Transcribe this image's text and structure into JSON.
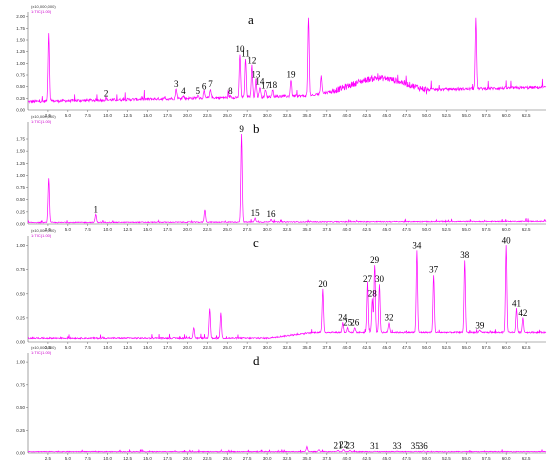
{
  "colors": {
    "trace": "#ff00ff",
    "axis": "#666666",
    "text": "#000000"
  },
  "x_ticks": [
    "2.5",
    "5.0",
    "7.5",
    "10.0",
    "12.5",
    "15.0",
    "17.5",
    "20.0",
    "22.5",
    "25.0",
    "27.5",
    "30.0",
    "32.5",
    "35.0",
    "37.5",
    "40.0",
    "42.5",
    "45.0",
    "47.5",
    "50.0",
    "52.5",
    "55.0",
    "57.5",
    "60.0",
    "62.5"
  ],
  "y_ticks": [
    "0.25",
    "0.50",
    "0.75",
    "1.00",
    "1.25",
    "1.50",
    "1.75",
    "2.00"
  ],
  "chart_data": [
    {
      "type": "line",
      "panel": "a",
      "scale_label": "(x10,000,000)",
      "trace_label": "1:TIC(1.00)",
      "xlim": [
        0,
        65
      ],
      "ylim": [
        0,
        2.1
      ],
      "grid": false,
      "peaks": [
        {
          "x": 2.6,
          "y": 1.65,
          "label": ""
        },
        {
          "x": 9.8,
          "y": 0.25,
          "label": "2"
        },
        {
          "x": 18.6,
          "y": 0.45,
          "label": "3"
        },
        {
          "x": 19.5,
          "y": 0.3,
          "label": "4"
        },
        {
          "x": 21.3,
          "y": 0.3,
          "label": "5"
        },
        {
          "x": 22.1,
          "y": 0.4,
          "label": "6"
        },
        {
          "x": 22.9,
          "y": 0.45,
          "label": "7"
        },
        {
          "x": 25.4,
          "y": 0.3,
          "label": "8"
        },
        {
          "x": 26.6,
          "y": 1.2,
          "label": "10"
        },
        {
          "x": 27.3,
          "y": 1.1,
          "label": "11"
        },
        {
          "x": 28.1,
          "y": 0.95,
          "label": "12"
        },
        {
          "x": 28.6,
          "y": 0.65,
          "label": "13"
        },
        {
          "x": 29.1,
          "y": 0.5,
          "label": "14"
        },
        {
          "x": 29.8,
          "y": 0.42,
          "label": "17"
        },
        {
          "x": 30.7,
          "y": 0.43,
          "label": "18"
        },
        {
          "x": 33.0,
          "y": 0.65,
          "label": "19"
        },
        {
          "x": 35.2,
          "y": 2.0,
          "label": ""
        },
        {
          "x": 36.8,
          "y": 0.75,
          "label": ""
        },
        {
          "x": 56.2,
          "y": 1.95,
          "label": ""
        }
      ]
    },
    {
      "type": "line",
      "panel": "b",
      "scale_label": "(x10,000,000)",
      "trace_label": "1:TIC(1.00)",
      "xlim": [
        0,
        65
      ],
      "ylim": [
        0,
        2.1
      ],
      "grid": false,
      "peaks": [
        {
          "x": 2.6,
          "y": 0.95,
          "label": ""
        },
        {
          "x": 8.5,
          "y": 0.2,
          "label": "1"
        },
        {
          "x": 22.2,
          "y": 0.3,
          "label": ""
        },
        {
          "x": 26.8,
          "y": 1.85,
          "label": "9"
        },
        {
          "x": 28.5,
          "y": 0.12,
          "label": "15"
        },
        {
          "x": 30.5,
          "y": 0.1,
          "label": "16"
        }
      ]
    },
    {
      "type": "line",
      "panel": "c",
      "scale_label": "(x10,000,000)",
      "trace_label": "1:TIC(1.00)",
      "xlim": [
        0,
        65
      ],
      "ylim": [
        0,
        1.1
      ],
      "grid": false,
      "peaks": [
        {
          "x": 20.8,
          "y": 0.15,
          "label": ""
        },
        {
          "x": 22.8,
          "y": 0.35,
          "label": ""
        },
        {
          "x": 24.2,
          "y": 0.3,
          "label": ""
        },
        {
          "x": 37.0,
          "y": 0.55,
          "label": "20"
        },
        {
          "x": 39.5,
          "y": 0.2,
          "label": "24"
        },
        {
          "x": 40.1,
          "y": 0.15,
          "label": "25"
        },
        {
          "x": 41.0,
          "y": 0.15,
          "label": "26"
        },
        {
          "x": 42.6,
          "y": 0.6,
          "label": "27"
        },
        {
          "x": 43.2,
          "y": 0.45,
          "label": "28"
        },
        {
          "x": 43.5,
          "y": 0.8,
          "label": "29"
        },
        {
          "x": 44.1,
          "y": 0.6,
          "label": "30"
        },
        {
          "x": 45.3,
          "y": 0.2,
          "label": "32"
        },
        {
          "x": 48.8,
          "y": 0.95,
          "label": "34"
        },
        {
          "x": 50.9,
          "y": 0.7,
          "label": "37"
        },
        {
          "x": 54.8,
          "y": 0.85,
          "label": "38"
        },
        {
          "x": 56.7,
          "y": 0.12,
          "label": "39"
        },
        {
          "x": 60.0,
          "y": 1.0,
          "label": "40"
        },
        {
          "x": 61.3,
          "y": 0.35,
          "label": "41"
        },
        {
          "x": 62.1,
          "y": 0.25,
          "label": "42"
        }
      ]
    },
    {
      "type": "line",
      "panel": "d",
      "scale_label": "(x10,000,000)",
      "trace_label": "1:TIC(1.00)",
      "xlim": [
        0,
        65
      ],
      "ylim": [
        0,
        1.1
      ],
      "grid": false,
      "peaks": [
        {
          "x": 35.0,
          "y": 0.07,
          "label": ""
        },
        {
          "x": 36.5,
          "y": 0.04,
          "label": ""
        },
        {
          "x": 38.9,
          "y": 0.03,
          "label": "21"
        },
        {
          "x": 39.6,
          "y": 0.04,
          "label": "22"
        },
        {
          "x": 40.4,
          "y": 0.03,
          "label": "23"
        },
        {
          "x": 43.5,
          "y": 0.02,
          "label": "31"
        },
        {
          "x": 46.3,
          "y": 0.02,
          "label": "33"
        },
        {
          "x": 48.6,
          "y": 0.02,
          "label": "35"
        },
        {
          "x": 49.6,
          "y": 0.02,
          "label": "36"
        }
      ]
    }
  ]
}
